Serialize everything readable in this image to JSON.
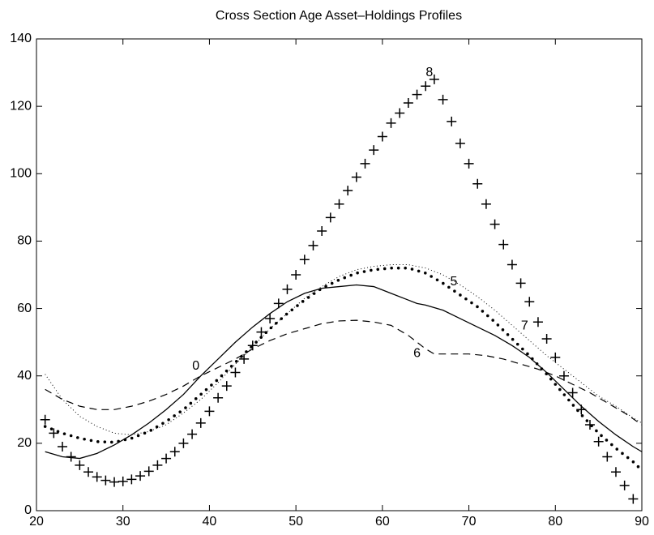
{
  "chart_data": {
    "type": "line",
    "title": "Cross Section Age Asset–Holdings Profiles",
    "xlim": [
      20,
      90
    ],
    "xticks": [
      20,
      30,
      40,
      50,
      60,
      70,
      80,
      90
    ],
    "ylim": [
      0,
      140
    ],
    "yticks": [
      0,
      20,
      40,
      60,
      80,
      100,
      120,
      140
    ],
    "grid": false,
    "series": [
      {
        "name": "0",
        "color": "#000000",
        "style": "solid",
        "x": [
          21,
          23,
          25,
          27,
          29,
          31,
          33,
          35,
          37,
          39,
          41,
          43,
          45,
          47,
          49,
          51,
          53,
          55,
          57,
          59,
          61,
          63,
          64,
          65,
          67,
          69,
          71,
          73,
          75,
          77,
          79,
          81,
          83,
          85,
          87,
          89,
          90
        ],
        "values": [
          17.5,
          16,
          15.5,
          17,
          19.5,
          22.5,
          26,
          30,
          34.5,
          40,
          45,
          50,
          54.5,
          58.5,
          62,
          64.5,
          66,
          66.5,
          67,
          66.5,
          64.5,
          62.5,
          61.5,
          61,
          59.5,
          57,
          54.5,
          52,
          49,
          45.5,
          41,
          36,
          31,
          26.5,
          22.5,
          19,
          17.5
        ]
      },
      {
        "name": "5",
        "color": "#000000",
        "style": "dots",
        "x": [
          21,
          23,
          25,
          27,
          29,
          31,
          33,
          35,
          37,
          39,
          41,
          43,
          45,
          47,
          49,
          51,
          53,
          55,
          57,
          59,
          61,
          63,
          65,
          67,
          69,
          71,
          73,
          75,
          77,
          79,
          81,
          83,
          85,
          87,
          89,
          90
        ],
        "values": [
          25,
          23,
          21.5,
          20.5,
          20.3,
          21.5,
          23.5,
          26.5,
          30,
          34.5,
          39,
          44,
          49,
          54,
          58.5,
          62.5,
          66,
          68.5,
          70.5,
          71.5,
          72,
          72,
          70.5,
          67.5,
          64,
          60.5,
          56,
          51,
          46,
          40.5,
          34.5,
          28.5,
          23,
          18.5,
          14.5,
          12
        ]
      },
      {
        "name": "6",
        "color": "#000000",
        "style": "dashed",
        "x": [
          21,
          23,
          25,
          27,
          29,
          31,
          33,
          35,
          37,
          39,
          41,
          43,
          45,
          47,
          49,
          51,
          53,
          55,
          57,
          59,
          61,
          63,
          64,
          65,
          66,
          68,
          70,
          72,
          74,
          76,
          78,
          80,
          82,
          84,
          86,
          88,
          90
        ],
        "values": [
          36,
          33,
          31,
          30,
          30,
          31,
          32.5,
          34.5,
          37,
          40,
          42.5,
          45,
          48,
          50.5,
          52.5,
          54,
          55.5,
          56.3,
          56.5,
          56,
          55,
          52,
          50,
          48,
          46.5,
          46.5,
          46.5,
          46,
          45,
          43.5,
          42,
          40,
          37.5,
          35,
          32,
          29,
          25.5
        ]
      },
      {
        "name": "7",
        "color": "#000000",
        "style": "dotted",
        "x": [
          21,
          23,
          25,
          27,
          29,
          31,
          33,
          35,
          37,
          39,
          41,
          43,
          45,
          47,
          49,
          51,
          53,
          55,
          57,
          59,
          61,
          63,
          65,
          67,
          69,
          71,
          73,
          75,
          77,
          79,
          81,
          83,
          85,
          87,
          89,
          90
        ],
        "values": [
          40.5,
          33,
          28,
          25,
          23,
          22.5,
          23.5,
          25.5,
          29,
          33,
          38,
          43.5,
          48.5,
          54,
          58.5,
          63,
          66.5,
          69.5,
          71.5,
          72.5,
          73,
          73,
          72,
          70,
          67,
          63.5,
          59.5,
          55,
          50.5,
          46,
          42,
          38,
          34,
          31,
          27.5,
          26
        ]
      },
      {
        "name": "8",
        "color": "#000000",
        "style": "plus",
        "x": [
          21,
          22,
          23,
          24,
          25,
          26,
          27,
          28,
          29,
          30,
          31,
          32,
          33,
          34,
          35,
          36,
          37,
          38,
          39,
          40,
          41,
          42,
          43,
          44,
          45,
          46,
          47,
          48,
          49,
          50,
          51,
          52,
          53,
          54,
          55,
          56,
          57,
          58,
          59,
          60,
          61,
          62,
          63,
          64,
          65,
          66,
          67,
          68,
          69,
          70,
          71,
          72,
          73,
          74,
          75,
          76,
          77,
          78,
          79,
          80,
          81,
          82,
          83,
          84,
          85,
          86,
          87,
          88,
          89
        ],
        "values": [
          27,
          23,
          19,
          16,
          13.5,
          11.5,
          10,
          9,
          8.5,
          8.7,
          9.3,
          10.3,
          11.7,
          13.5,
          15.5,
          17.5,
          20,
          22.7,
          26,
          29.5,
          33.5,
          37,
          41,
          45,
          49,
          53,
          57,
          61.5,
          65.7,
          70,
          74.5,
          78.7,
          83,
          87,
          91,
          95,
          99,
          103,
          107,
          111,
          115,
          118,
          121,
          123.5,
          126,
          128,
          122,
          115.5,
          109,
          103,
          97,
          91,
          85,
          79,
          73,
          67.5,
          62,
          56,
          51,
          45.5,
          40,
          35,
          30,
          25.5,
          20.5,
          16,
          11.5,
          7.5,
          3.5
        ]
      }
    ]
  }
}
